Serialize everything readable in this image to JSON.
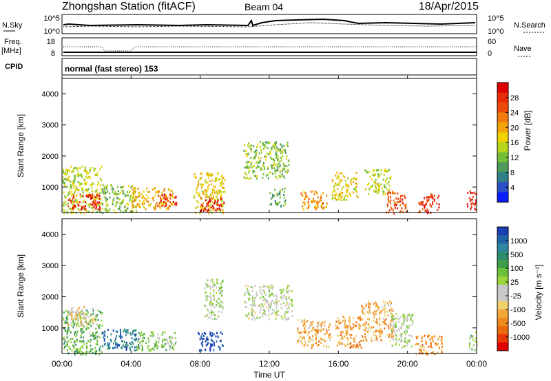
{
  "header": {
    "station": "Zhongshan Station (fitACF)",
    "beam": "Beam 04",
    "date": "18/Apr/2015"
  },
  "noise_panel": {
    "left_label": "N.Sky",
    "right_label": "N.Search",
    "left_ticks": [
      "10^5",
      "10^0"
    ],
    "right_ticks": [
      "10^5",
      "10^0"
    ]
  },
  "freq_panel": {
    "left_label_1": "Freq.",
    "left_label_2": "[MHz]",
    "right_label": "Nave",
    "left_ticks": [
      "18",
      "8"
    ],
    "right_ticks": [
      "60",
      "0"
    ]
  },
  "cpid_panel": {
    "label": "CPID",
    "text": "normal (fast stereo) 153"
  },
  "x_axis": {
    "label": "Time UT",
    "ticks": [
      "00:00",
      "04:00",
      "08:00",
      "12:00",
      "16:00",
      "20:00",
      "00:00"
    ],
    "range_hours": [
      0,
      24
    ]
  },
  "y_axis": {
    "label": "Slant Range [km]",
    "range_km": [
      180,
      4500
    ],
    "ticks": [
      1000,
      2000,
      3000,
      4000
    ]
  },
  "colorbars": {
    "power": {
      "label": "Power [dB]",
      "ticks": [
        "4",
        "8",
        "12",
        "16",
        "20",
        "24",
        "28"
      ],
      "colors": [
        "#0a1eff",
        "#2a50c8",
        "#2f7f88",
        "#4f9a5a",
        "#74bf38",
        "#b8d41e",
        "#f0d200",
        "#f5a30a",
        "#f07a0a",
        "#ec4a08",
        "#e82a06",
        "#e00000"
      ]
    },
    "velocity": {
      "label": "Velocity [m s⁻¹]",
      "ticks": [
        "1000",
        "500",
        "100",
        "25",
        "-25",
        "-100",
        "-500",
        "-1000"
      ],
      "colors": [
        "#1a3eb4",
        "#1f63a8",
        "#2e86a0",
        "#2d8c6c",
        "#3f9e4a",
        "#6cc03a",
        "#9ad63c",
        "#c8c8c8",
        "#c8c8c8",
        "#f0d06a",
        "#f3a83a",
        "#f08a1c",
        "#ee6a0e",
        "#ea3a08",
        "#e00000"
      ]
    }
  },
  "chart_data": [
    {
      "type": "heatmap",
      "title": "Power [dB]",
      "xlabel": "Time UT",
      "ylabel": "Slant Range [km]",
      "x_range": [
        0,
        24
      ],
      "y_range": [
        180,
        4500
      ],
      "value_range": [
        0,
        30
      ],
      "regions": [
        {
          "t": [
            0.0,
            2.3
          ],
          "range_km": [
            180,
            1700
          ],
          "value": 14
        },
        {
          "t": [
            0.3,
            2.2
          ],
          "range_km": [
            300,
            800
          ],
          "value": 26
        },
        {
          "t": [
            2.3,
            4.3
          ],
          "range_km": [
            180,
            1100
          ],
          "value": 12
        },
        {
          "t": [
            4.0,
            6.4
          ],
          "range_km": [
            300,
            1000
          ],
          "value": 18
        },
        {
          "t": [
            5.5,
            6.6
          ],
          "range_km": [
            400,
            800
          ],
          "value": 26
        },
        {
          "t": [
            7.6,
            9.4
          ],
          "range_km": [
            180,
            1500
          ],
          "value": 16
        },
        {
          "t": [
            8.0,
            9.4
          ],
          "range_km": [
            250,
            700
          ],
          "value": 28
        },
        {
          "t": [
            10.5,
            13.1
          ],
          "range_km": [
            1300,
            2500
          ],
          "value": 12
        },
        {
          "t": [
            12.0,
            12.9
          ],
          "range_km": [
            400,
            1000
          ],
          "value": 10
        },
        {
          "t": [
            13.8,
            15.3
          ],
          "range_km": [
            300,
            900
          ],
          "value": 20
        },
        {
          "t": [
            15.6,
            17.1
          ],
          "range_km": [
            600,
            1500
          ],
          "value": 16
        },
        {
          "t": [
            17.5,
            19.0
          ],
          "range_km": [
            800,
            1600
          ],
          "value": 14
        },
        {
          "t": [
            18.7,
            19.9
          ],
          "range_km": [
            180,
            900
          ],
          "value": 24
        },
        {
          "t": [
            20.6,
            21.8
          ],
          "range_km": [
            180,
            800
          ],
          "value": 26
        },
        {
          "t": [
            23.4,
            24.0
          ],
          "range_km": [
            300,
            900
          ],
          "value": 28
        }
      ]
    },
    {
      "type": "heatmap",
      "title": "Velocity [m s⁻¹]",
      "xlabel": "Time UT",
      "ylabel": "Slant Range [km]",
      "x_range": [
        0,
        24
      ],
      "y_range": [
        180,
        4500
      ],
      "value_range": [
        -1000,
        1000
      ],
      "regions": [
        {
          "t": [
            0.0,
            2.3
          ],
          "range_km": [
            180,
            1600
          ],
          "value": 300
        },
        {
          "t": [
            0.3,
            2.0
          ],
          "range_km": [
            1100,
            1700
          ],
          "value": -200
        },
        {
          "t": [
            2.3,
            4.5
          ],
          "range_km": [
            300,
            1000
          ],
          "value": 700
        },
        {
          "t": [
            4.3,
            6.6
          ],
          "range_km": [
            300,
            900
          ],
          "value": 150
        },
        {
          "t": [
            7.8,
            9.3
          ],
          "range_km": [
            300,
            900
          ],
          "value": 1000
        },
        {
          "t": [
            8.2,
            9.3
          ],
          "range_km": [
            1300,
            2600
          ],
          "value": 80
        },
        {
          "t": [
            10.5,
            13.3
          ],
          "range_km": [
            1300,
            2400
          ],
          "value": 0
        },
        {
          "t": [
            13.6,
            15.6
          ],
          "range_km": [
            400,
            1300
          ],
          "value": -400
        },
        {
          "t": [
            15.8,
            17.3
          ],
          "range_km": [
            400,
            1400
          ],
          "value": -500
        },
        {
          "t": [
            17.3,
            19.2
          ],
          "range_km": [
            600,
            1900
          ],
          "value": -400
        },
        {
          "t": [
            19.0,
            20.3
          ],
          "range_km": [
            400,
            1500
          ],
          "value": 80
        },
        {
          "t": [
            20.4,
            22.0
          ],
          "range_km": [
            180,
            800
          ],
          "value": -500
        },
        {
          "t": [
            23.5,
            24.0
          ],
          "range_km": [
            300,
            900
          ],
          "value": 200
        }
      ]
    }
  ]
}
